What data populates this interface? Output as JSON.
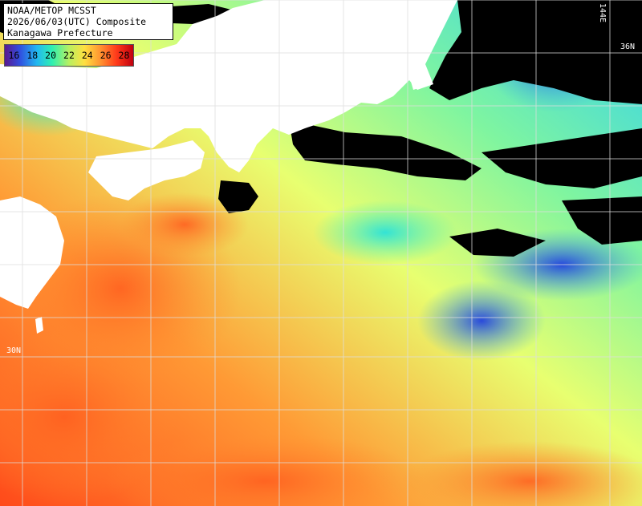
{
  "title": {
    "line1": "NOAA/METOP MCSST",
    "line2": "2026/06/03(UTC) Composite",
    "line3": "Kanagawa Prefecture"
  },
  "legend": {
    "labels": [
      "16",
      "18",
      "20",
      "22",
      "24",
      "26",
      "28"
    ],
    "colors": [
      "#5a1890",
      "#3050e0",
      "#22b8f0",
      "#30f0b0",
      "#b8f060",
      "#ffe040",
      "#ff9030",
      "#ff3a1a",
      "#c00010"
    ]
  },
  "grid_labels": {
    "lat_36": "36N",
    "lat_30": "30N",
    "lon_144": "144E"
  },
  "colors": {
    "land": "#ffffff",
    "cloud": "#000000",
    "grid": "#dddddd"
  }
}
